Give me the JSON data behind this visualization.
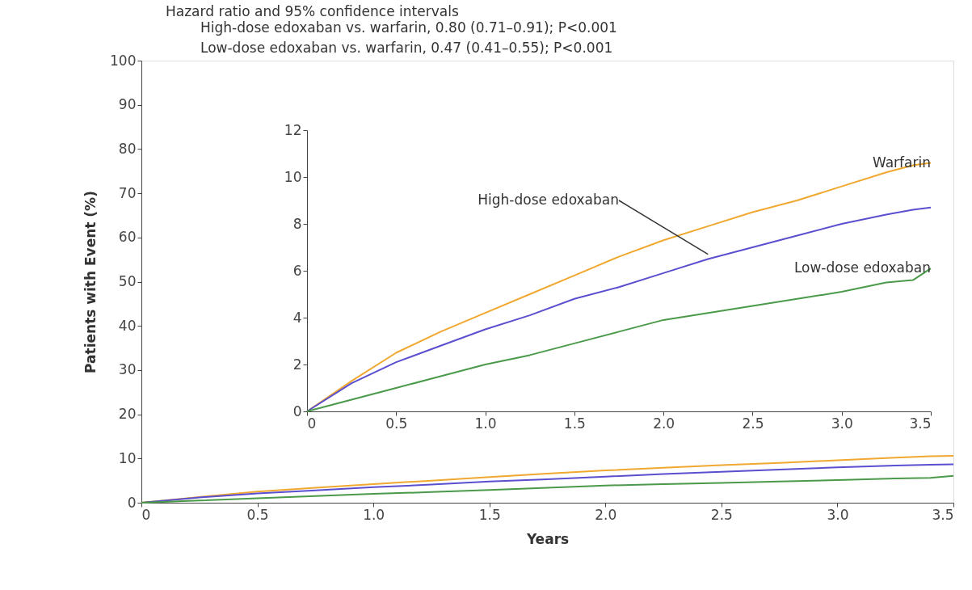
{
  "chart_data": [
    {
      "type": "line",
      "title": "Hazard ratio and 95% confidence intervals",
      "annotations": [
        "High-dose edoxaban vs. warfarin, 0.80 (0.71–0.91); P<0.001",
        "Low-dose edoxaban vs. warfarin, 0.47 (0.41–0.55); P<0.001"
      ],
      "xlabel": "Years",
      "ylabel": "Patients with Event (%)",
      "x": [
        0,
        0.25,
        0.5,
        0.75,
        1.0,
        1.25,
        1.5,
        1.75,
        2.0,
        2.25,
        2.5,
        2.75,
        3.0,
        3.25,
        3.4,
        3.5
      ],
      "series": [
        {
          "color": "#f0a830",
          "values": [
            0,
            1.3,
            2.5,
            3.4,
            4.2,
            5.0,
            5.8,
            6.6,
            7.3,
            7.9,
            8.5,
            9.0,
            9.6,
            10.2,
            10.5,
            10.6
          ]
        },
        {
          "color": "#5a4fcf",
          "values": [
            0,
            1.2,
            2.1,
            2.8,
            3.5,
            4.1,
            4.8,
            5.3,
            5.9,
            6.5,
            7.0,
            7.5,
            8.0,
            8.4,
            8.6,
            8.7
          ]
        },
        {
          "color": "#4a9a4a",
          "values": [
            0,
            0.5,
            1.0,
            1.5,
            2.0,
            2.4,
            2.9,
            3.4,
            3.9,
            4.2,
            4.5,
            4.8,
            5.1,
            5.5,
            5.6,
            6.1
          ]
        }
      ],
      "xlim": [
        0,
        3.5
      ],
      "ylim": [
        0,
        100
      ],
      "xticks": [
        0,
        0.5,
        {
          "value": 1,
          "label": "1.0"
        },
        1.5,
        {
          "value": 2,
          "label": "2.0"
        },
        2.5,
        {
          "value": 3,
          "label": "3.0"
        },
        3.5
      ],
      "yticks": [
        0,
        10,
        20,
        30,
        40,
        50,
        60,
        70,
        80,
        90,
        100
      ],
      "grid": false,
      "legend": false,
      "marker": "none",
      "line_style": "solid"
    },
    {
      "type": "line",
      "x": [
        0,
        0.25,
        0.5,
        0.75,
        1.0,
        1.25,
        1.5,
        1.75,
        2.0,
        2.25,
        2.5,
        2.75,
        3.0,
        3.25,
        3.4,
        3.5
      ],
      "series": [
        {
          "name": "Warfarin",
          "color": "#f0a830",
          "values": [
            0,
            1.3,
            2.5,
            3.4,
            4.2,
            5.0,
            5.8,
            6.6,
            7.3,
            7.9,
            8.5,
            9.0,
            9.6,
            10.2,
            10.5,
            10.6
          ]
        },
        {
          "name": "High-dose edoxaban",
          "color": "#5a4fcf",
          "values": [
            0,
            1.2,
            2.1,
            2.8,
            3.5,
            4.1,
            4.8,
            5.3,
            5.9,
            6.5,
            7.0,
            7.5,
            8.0,
            8.4,
            8.6,
            8.7
          ]
        },
        {
          "name": "Low-dose edoxaban",
          "color": "#4a9a4a",
          "values": [
            0,
            0.5,
            1.0,
            1.5,
            2.0,
            2.4,
            2.9,
            3.4,
            3.9,
            4.2,
            4.5,
            4.8,
            5.1,
            5.5,
            5.6,
            6.1
          ]
        }
      ],
      "xlim": [
        0,
        3.5
      ],
      "ylim": [
        0,
        12
      ],
      "xticks": [
        0,
        0.5,
        {
          "value": 1,
          "label": "1.0"
        },
        1.5,
        {
          "value": 2,
          "label": "2.0"
        },
        2.5,
        {
          "value": 3,
          "label": "3.0"
        },
        3.5
      ],
      "yticks": [
        0,
        2,
        4,
        6,
        8,
        10,
        12
      ],
      "grid": false,
      "legend": false,
      "marker": "none",
      "line_style": "solid"
    }
  ]
}
